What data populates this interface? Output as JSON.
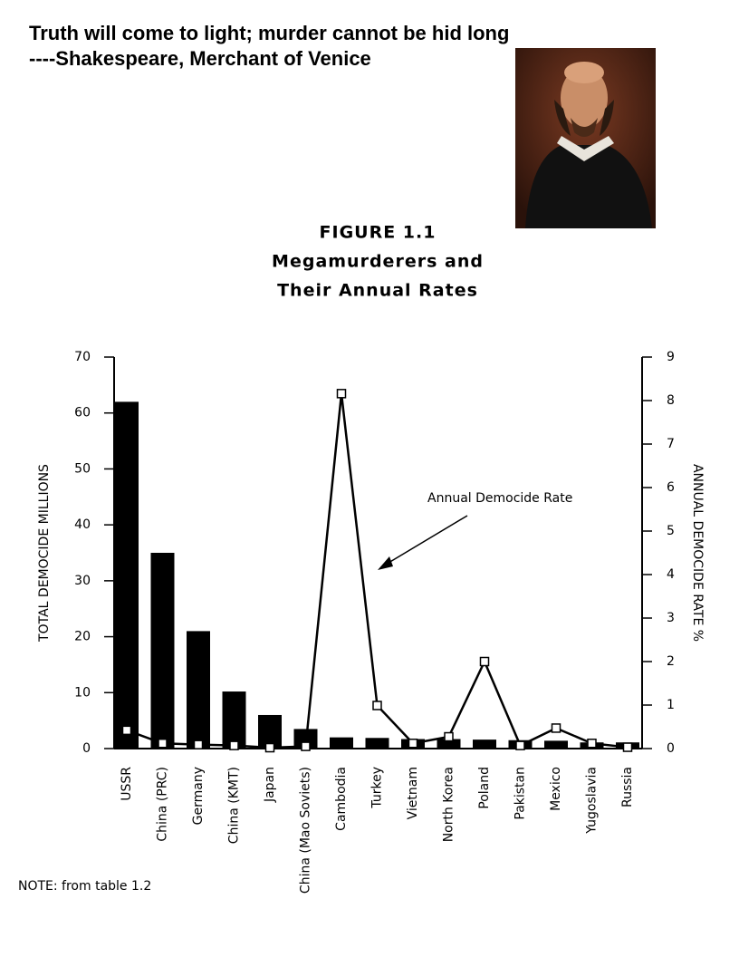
{
  "quote": {
    "line1": "Truth will come to light; murder cannot be hid long",
    "line2": "----Shakespeare, Merchant of Venice"
  },
  "chart_data": {
    "type": "bar",
    "title": [
      "FIGURE 1.1",
      "Megamurderers and",
      "Their Annual Rates"
    ],
    "ylabel": "TOTAL DEMOCIDE MILLIONS",
    "y2label": "ANNUAL DEMOCIDE RATE %",
    "annotation": "Annual Democide Rate",
    "note": "NOTE: from table 1.2",
    "categories": [
      "USSR",
      "China (PRC)",
      "Germany",
      "China (KMT)",
      "Japan",
      "China (Mao Soviets)",
      "Cambodia",
      "Turkey",
      "Vietnam",
      "North Korea",
      "Poland",
      "Pakistan",
      "Mexico",
      "Yugoslavia",
      "Russia"
    ],
    "series": [
      {
        "type": "bar",
        "color": "#000000",
        "values": [
          62,
          35,
          21,
          10.2,
          6,
          3.5,
          2,
          1.9,
          1.7,
          1.7,
          1.6,
          1.5,
          1.4,
          1.1,
          1.1
        ]
      },
      {
        "type": "line",
        "axis": "y2",
        "color": "#000000",
        "values": [
          0.42,
          0.12,
          0.09,
          0.07,
          0.02,
          0.05,
          8.16,
          0.99,
          0.12,
          0.27,
          2.0,
          0.07,
          0.47,
          0.12,
          0.03
        ]
      }
    ],
    "ylim": [
      0,
      70
    ],
    "yticks": [
      0,
      10,
      20,
      30,
      40,
      50,
      60,
      70
    ],
    "y2lim": [
      0,
      9
    ],
    "y2ticks": [
      0,
      1,
      2,
      3,
      4,
      5,
      6,
      7,
      8,
      9
    ]
  }
}
